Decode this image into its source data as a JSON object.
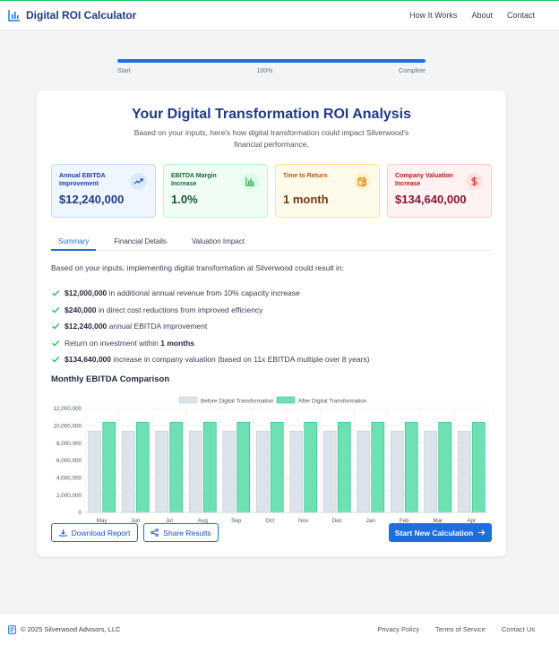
{
  "header": {
    "title": "Digital ROI Calculator",
    "nav": [
      "How It Works",
      "About",
      "Contact"
    ]
  },
  "progress": {
    "value_percent": 100,
    "start_label": "Start",
    "center_label": "100%",
    "end_label": "Complete"
  },
  "analysis": {
    "title": "Your Digital Transformation ROI Analysis",
    "subtitle": "Based on your inputs, here's how digital transformation could impact Silverwood's financial performance."
  },
  "metrics": [
    {
      "label": "Annual EBITDA Improvement",
      "value": "$12,240,000",
      "icon": "trending-up-icon"
    },
    {
      "label": "EBITDA Margin Increase",
      "value": "1.0%",
      "icon": "bar-chart-icon"
    },
    {
      "label": "Time to Return",
      "value": "1 month",
      "icon": "calendar-clock-icon"
    },
    {
      "label": "Company Valuation Increase",
      "value": "$134,640,000",
      "icon": "dollar-icon"
    }
  ],
  "tabs": [
    "Summary",
    "Financial Details",
    "Valuation Impact"
  ],
  "summary": {
    "intro": "Based on your inputs, implementing digital transformation at Silverwood could result in:",
    "items": [
      {
        "pre": "",
        "bold": "$12,000,000",
        "post": " in additional annual revenue from 10% capacity increase"
      },
      {
        "pre": "",
        "bold": "$240,000",
        "post": " in direct cost reductions from improved efficiency"
      },
      {
        "pre": "",
        "bold": "$12,240,000",
        "post": " annual EBITDA improvement"
      },
      {
        "pre": "Return on investment within ",
        "bold": "1 months",
        "post": ""
      },
      {
        "pre": "",
        "bold": "$134,640,000",
        "post": " increase in company valuation (based on 11x EBITDA multiple over 8 years)"
      }
    ]
  },
  "chart_section": {
    "title": "Monthly EBITDA Comparison"
  },
  "chart_data": {
    "type": "bar",
    "categories": [
      "May",
      "Jun",
      "Jul",
      "Aug",
      "Sep",
      "Oct",
      "Nov",
      "Dec",
      "Jan",
      "Feb",
      "Mar",
      "Apr"
    ],
    "series": [
      {
        "name": "Before Digital Transformation",
        "values": [
          9400000,
          9400000,
          9400000,
          9400000,
          9400000,
          9400000,
          9400000,
          9400000,
          9400000,
          9400000,
          9400000,
          9400000
        ],
        "color": "#dde3ea",
        "border": "#c5ced8"
      },
      {
        "name": "After Digital Transformation",
        "values": [
          10420000,
          10420000,
          10420000,
          10420000,
          10420000,
          10420000,
          10420000,
          10420000,
          10420000,
          10420000,
          10420000,
          10420000
        ],
        "color": "#6ee0b4",
        "border": "#34c28c"
      }
    ],
    "yticks": [
      "0",
      "2,000,000",
      "4,000,000",
      "6,000,000",
      "8,000,000",
      "10,000,000",
      "12,000,000"
    ],
    "ylim": [
      0,
      12000000
    ],
    "grid": true,
    "legend": "top-center"
  },
  "actions": {
    "download": "Download Report",
    "share": "Share Results",
    "new_calc": "Start New Calculation"
  },
  "footer": {
    "copyright": "© 2025 Silverwood Advisors, LLC",
    "links": [
      "Privacy Policy",
      "Terms of Service",
      "Contact Us"
    ]
  },
  "colors": {
    "primary": "#1d6fe0",
    "brand_dark": "#1e3a8a",
    "check": "#22c55e"
  }
}
